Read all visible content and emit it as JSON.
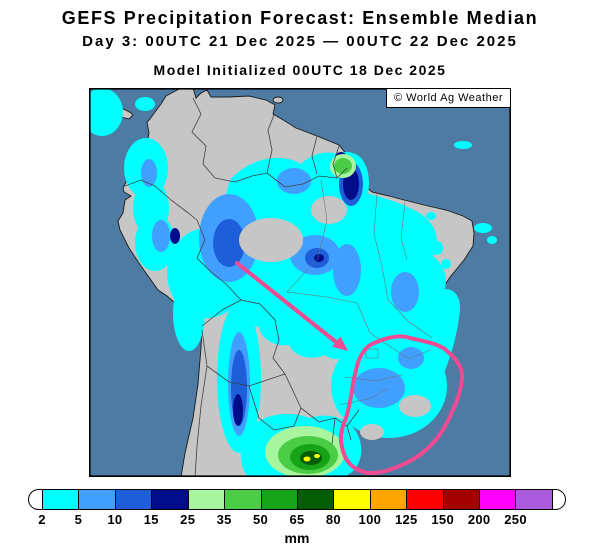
{
  "header": {
    "title": "GEFS Precipitation Forecast: Ensemble Median",
    "date_line": "Day 3: 00UTC 21 Dec 2025 — 00UTC 22 Dec 2025",
    "init_line": "Model Initialized 00UTC 18 Dec 2025"
  },
  "map": {
    "watermark": "© World Ag Weather",
    "colors": {
      "ocean": "#4E7BA3",
      "land": "#C6C6C6",
      "border": "#404040",
      "state_border": "#6E6E6E",
      "annotation": "#EE4B93"
    }
  },
  "colorbar": {
    "unit": "mm",
    "levels": [
      "2",
      "5",
      "10",
      "15",
      "25",
      "35",
      "50",
      "65",
      "80",
      "100",
      "125",
      "150",
      "200",
      "250"
    ],
    "colors": [
      "#00FFFF",
      "#41A0FF",
      "#1E5ED8",
      "#000D8A",
      "#A8F5A0",
      "#4ACC44",
      "#17A317",
      "#045C04",
      "#FFFF00",
      "#FFA500",
      "#FF0000",
      "#A30000",
      "#FF00FF",
      "#AA5BDC"
    ],
    "cap_color": "#FFFFFF"
  },
  "chart_data": {
    "type": "heatmap",
    "title": "GEFS Precipitation Forecast: Ensemble Median",
    "units": "mm",
    "legend_position": "bottom",
    "legend_thresholds_mm": [
      2,
      5,
      10,
      15,
      25,
      35,
      50,
      65,
      80,
      100,
      125,
      150,
      200,
      250
    ],
    "legend_colors": [
      "#00FFFF",
      "#41A0FF",
      "#1E5ED8",
      "#000D8A",
      "#A8F5A0",
      "#4ACC44",
      "#17A317",
      "#045C04",
      "#FFFF00",
      "#FFA500",
      "#FF0000",
      "#A30000",
      "#FF00FF",
      "#AA5BDC"
    ],
    "annotations": [
      {
        "type": "arrow",
        "color": "#EE4B93"
      },
      {
        "type": "region-outline",
        "color": "#EE4B93"
      }
    ]
  }
}
